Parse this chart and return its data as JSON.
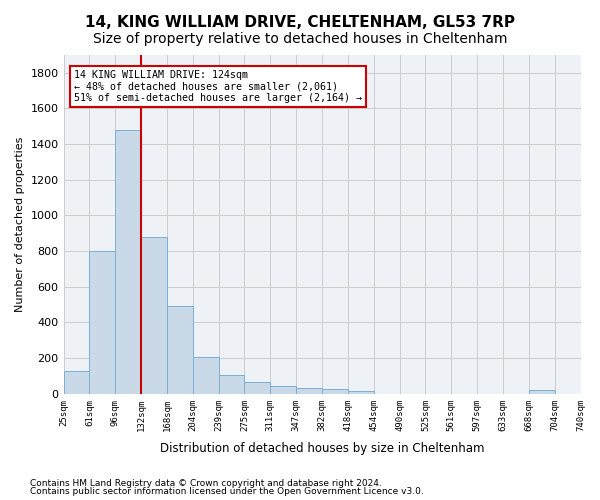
{
  "title1": "14, KING WILLIAM DRIVE, CHELTENHAM, GL53 7RP",
  "title2": "Size of property relative to detached houses in Cheltenham",
  "xlabel": "Distribution of detached houses by size in Cheltenham",
  "ylabel": "Number of detached properties",
  "footnote1": "Contains HM Land Registry data © Crown copyright and database right 2024.",
  "footnote2": "Contains public sector information licensed under the Open Government Licence v3.0.",
  "annotation_line1": "14 KING WILLIAM DRIVE: 124sqm",
  "annotation_line2": "← 48% of detached houses are smaller (2,061)",
  "annotation_line3": "51% of semi-detached houses are larger (2,164) →",
  "bar_values": [
    125,
    800,
    1480,
    880,
    490,
    205,
    105,
    65,
    45,
    35,
    25,
    15,
    0,
    0,
    0,
    0,
    0,
    0,
    20,
    0
  ],
  "bin_labels": [
    "25sqm",
    "61sqm",
    "96sqm",
    "132sqm",
    "168sqm",
    "204sqm",
    "239sqm",
    "275sqm",
    "311sqm",
    "347sqm",
    "382sqm",
    "418sqm",
    "454sqm",
    "490sqm",
    "525sqm",
    "561sqm",
    "597sqm",
    "633sqm",
    "668sqm",
    "704sqm",
    "740sqm"
  ],
  "bar_color": "#c9d9e8",
  "bar_edge_color": "#7bafd4",
  "vline_color": "#cc0000",
  "ylim": [
    0,
    1900
  ],
  "yticks": [
    0,
    200,
    400,
    600,
    800,
    1000,
    1200,
    1400,
    1600,
    1800
  ],
  "grid_color": "#cccccc",
  "bg_color": "#eef2f7",
  "annotation_box_color": "#cc0000",
  "title1_fontsize": 11,
  "title2_fontsize": 10
}
